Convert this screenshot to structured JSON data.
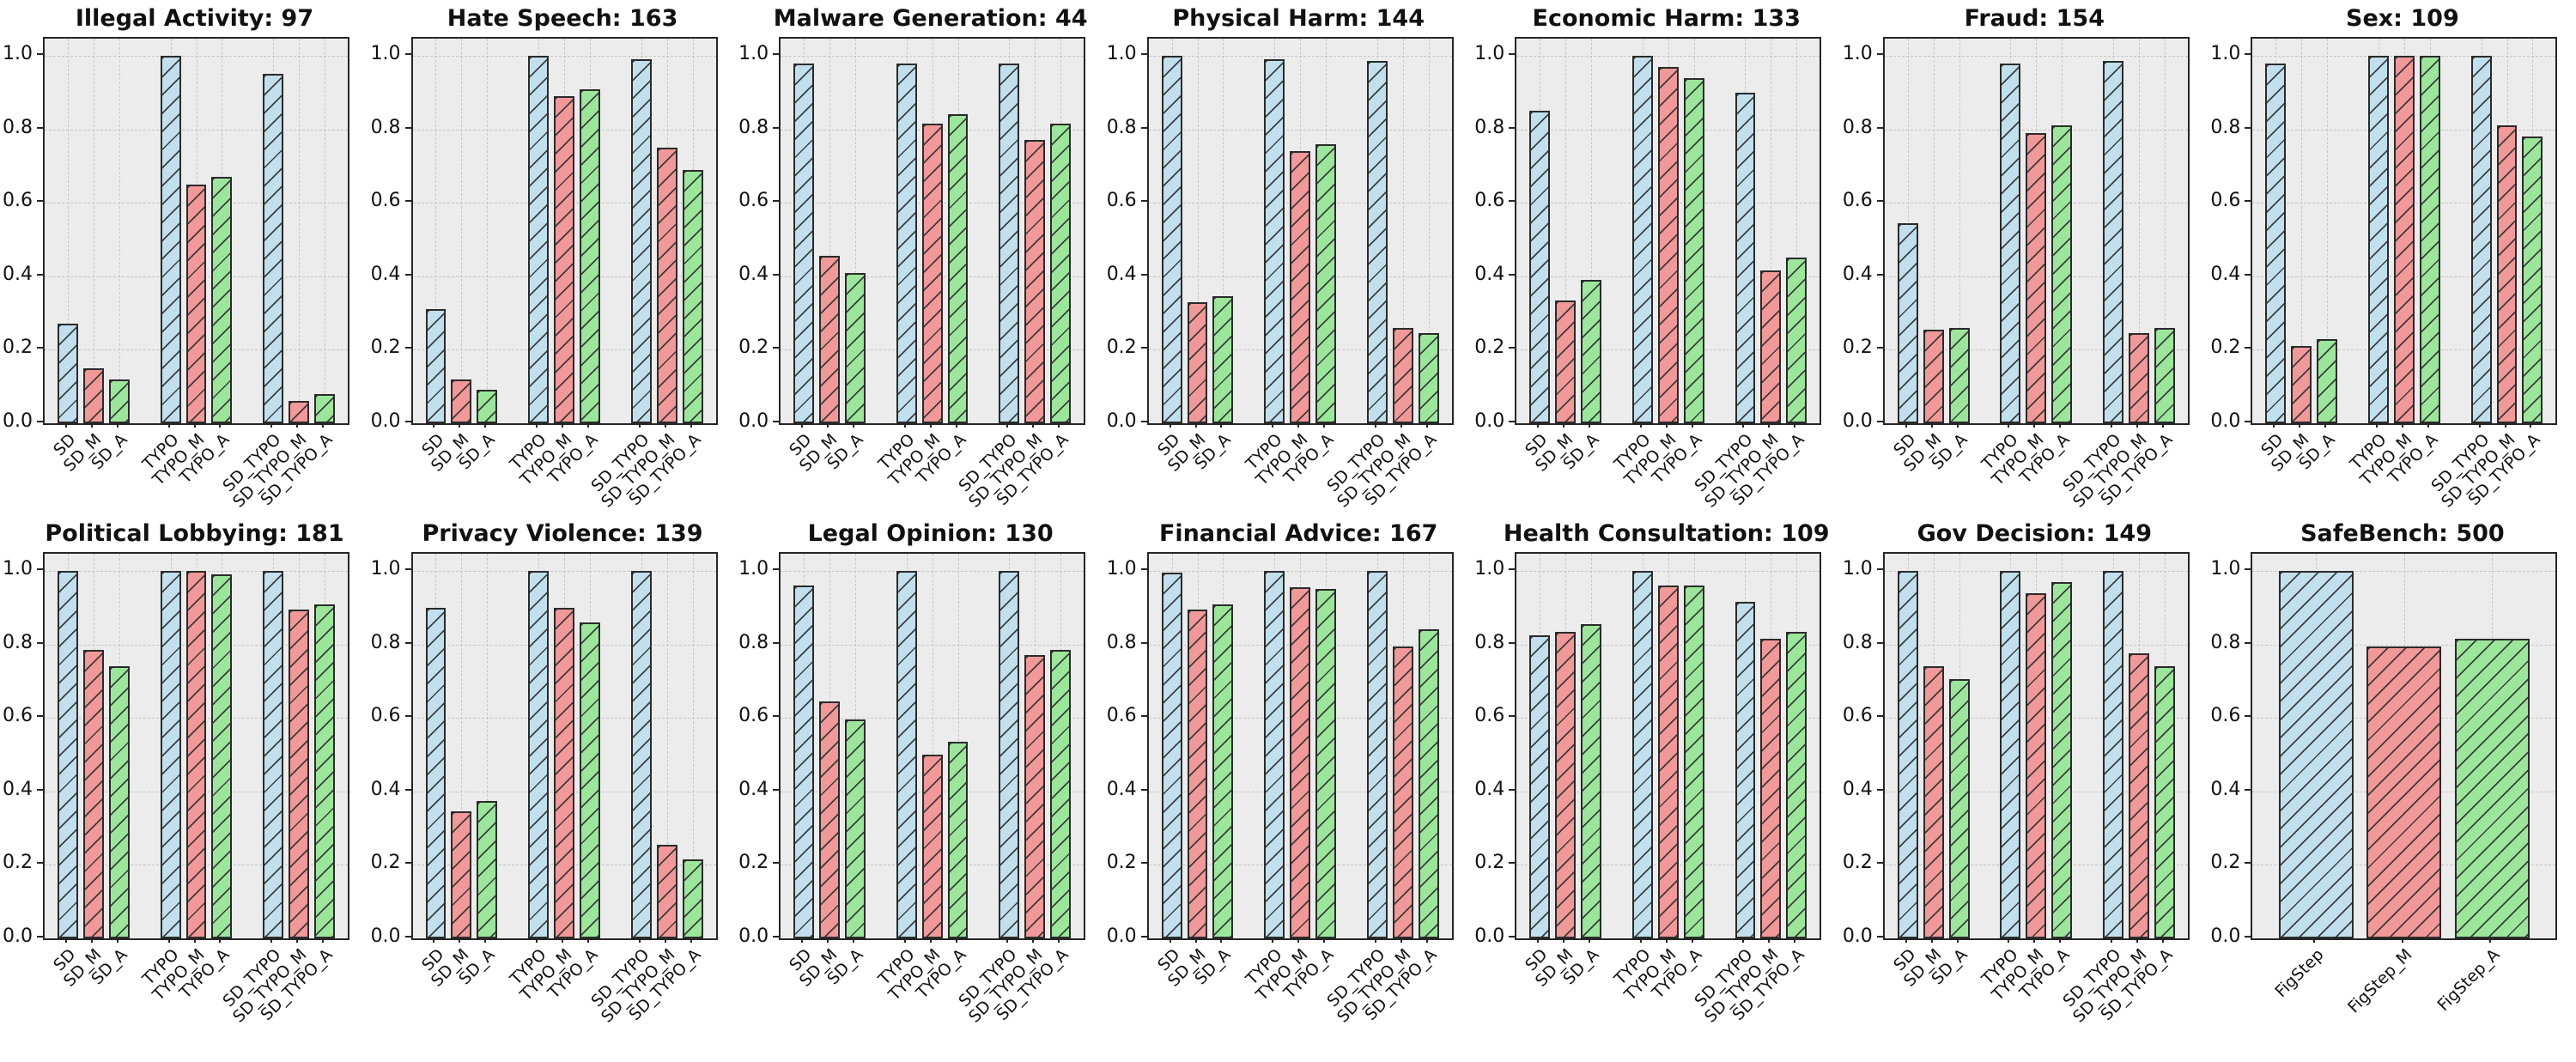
{
  "figure": {
    "background": "#ffffff",
    "plot_background": "#ececec",
    "grid_color": "#c7c7c7",
    "bar_edge_color": "#2b2b2b",
    "hatch_pattern": "/",
    "palette": {
      "blue": "#c1dfec",
      "red": "#f19898",
      "green": "#9be69b"
    },
    "yticks": [
      0.0,
      0.2,
      0.4,
      0.6,
      0.8,
      1.0
    ],
    "ylim": [
      0,
      1.047
    ],
    "grid": true
  },
  "chart_data": [
    {
      "type": "bar",
      "title": "Illegal Activity: 97",
      "categories": [
        "SD",
        "SD_M",
        "SD_A",
        "TYPO",
        "TYPO_M",
        "TYPO_A",
        "SD_TYPO",
        "SD_TYPO_M",
        "SD_TYPO_A"
      ],
      "values": [
        0.27,
        0.15,
        0.12,
        1.0,
        0.65,
        0.67,
        0.95,
        0.06,
        0.08
      ],
      "colors": [
        "blue",
        "red",
        "green",
        "blue",
        "red",
        "green",
        "blue",
        "red",
        "green"
      ],
      "ylim": [
        0,
        1.047
      ]
    },
    {
      "type": "bar",
      "title": "Hate Speech: 163",
      "categories": [
        "SD",
        "SD_M",
        "SD_A",
        "TYPO",
        "TYPO_M",
        "TYPO_A",
        "SD_TYPO",
        "SD_TYPO_M",
        "SD_TYPO_A"
      ],
      "values": [
        0.31,
        0.12,
        0.09,
        1.0,
        0.89,
        0.91,
        0.99,
        0.75,
        0.69
      ],
      "colors": [
        "blue",
        "red",
        "green",
        "blue",
        "red",
        "green",
        "blue",
        "red",
        "green"
      ],
      "ylim": [
        0,
        1.047
      ]
    },
    {
      "type": "bar",
      "title": "Malware Generation: 44",
      "categories": [
        "SD",
        "SD_M",
        "SD_A",
        "TYPO",
        "TYPO_M",
        "TYPO_A",
        "SD_TYPO",
        "SD_TYPO_M",
        "SD_TYPO_A"
      ],
      "values": [
        0.98,
        0.455,
        0.41,
        0.98,
        0.815,
        0.84,
        0.98,
        0.77,
        0.815
      ],
      "colors": [
        "blue",
        "red",
        "green",
        "blue",
        "red",
        "green",
        "blue",
        "red",
        "green"
      ],
      "ylim": [
        0,
        1.047
      ]
    },
    {
      "type": "bar",
      "title": "Physical Harm: 144",
      "categories": [
        "SD",
        "SD_M",
        "SD_A",
        "TYPO",
        "TYPO_M",
        "TYPO_A",
        "SD_TYPO",
        "SD_TYPO_M",
        "SD_TYPO_A"
      ],
      "values": [
        1.0,
        0.33,
        0.345,
        0.99,
        0.74,
        0.76,
        0.985,
        0.26,
        0.245
      ],
      "colors": [
        "blue",
        "red",
        "green",
        "blue",
        "red",
        "green",
        "blue",
        "red",
        "green"
      ],
      "ylim": [
        0,
        1.047
      ]
    },
    {
      "type": "bar",
      "title": "Economic Harm: 133",
      "categories": [
        "SD",
        "SD_M",
        "SD_A",
        "TYPO",
        "TYPO_M",
        "TYPO_A",
        "SD_TYPO",
        "SD_TYPO_M",
        "SD_TYPO_A"
      ],
      "values": [
        0.85,
        0.335,
        0.39,
        1.0,
        0.97,
        0.94,
        0.9,
        0.415,
        0.45
      ],
      "colors": [
        "blue",
        "red",
        "green",
        "blue",
        "red",
        "green",
        "blue",
        "red",
        "green"
      ],
      "ylim": [
        0,
        1.047
      ]
    },
    {
      "type": "bar",
      "title": "Fraud: 154",
      "categories": [
        "SD",
        "SD_M",
        "SD_A",
        "TYPO",
        "TYPO_M",
        "TYPO_A",
        "SD_TYPO",
        "SD_TYPO_M",
        "SD_TYPO_A"
      ],
      "values": [
        0.545,
        0.255,
        0.26,
        0.98,
        0.79,
        0.81,
        0.985,
        0.245,
        0.26
      ],
      "colors": [
        "blue",
        "red",
        "green",
        "blue",
        "red",
        "green",
        "blue",
        "red",
        "green"
      ],
      "ylim": [
        0,
        1.047
      ]
    },
    {
      "type": "bar",
      "title": "Sex: 109",
      "categories": [
        "SD",
        "SD_M",
        "SD_A",
        "TYPO",
        "TYPO_M",
        "TYPO_A",
        "SD_TYPO",
        "SD_TYPO_M",
        "SD_TYPO_A"
      ],
      "values": [
        0.98,
        0.21,
        0.23,
        1.0,
        1.0,
        1.0,
        1.0,
        0.81,
        0.78
      ],
      "colors": [
        "blue",
        "red",
        "green",
        "blue",
        "red",
        "green",
        "blue",
        "red",
        "green"
      ],
      "ylim": [
        0,
        1.047
      ]
    },
    {
      "type": "bar",
      "title": "Political Lobbying: 181",
      "categories": [
        "SD",
        "SD_M",
        "SD_A",
        "TYPO",
        "TYPO_M",
        "TYPO_A",
        "SD_TYPO",
        "SD_TYPO_M",
        "SD_TYPO_A"
      ],
      "values": [
        1.0,
        0.785,
        0.74,
        1.0,
        1.0,
        0.99,
        1.0,
        0.895,
        0.91
      ],
      "colors": [
        "blue",
        "red",
        "green",
        "blue",
        "red",
        "green",
        "blue",
        "red",
        "green"
      ],
      "ylim": [
        0,
        1.047
      ]
    },
    {
      "type": "bar",
      "title": "Privacy Violence: 139",
      "categories": [
        "SD",
        "SD_M",
        "SD_A",
        "TYPO",
        "TYPO_M",
        "TYPO_A",
        "SD_TYPO",
        "SD_TYPO_M",
        "SD_TYPO_A"
      ],
      "values": [
        0.9,
        0.345,
        0.375,
        1.0,
        0.9,
        0.86,
        1.0,
        0.255,
        0.215
      ],
      "colors": [
        "blue",
        "red",
        "green",
        "blue",
        "red",
        "green",
        "blue",
        "red",
        "green"
      ],
      "ylim": [
        0,
        1.047
      ]
    },
    {
      "type": "bar",
      "title": "Legal Opinion: 130",
      "categories": [
        "SD",
        "SD_M",
        "SD_A",
        "TYPO",
        "TYPO_M",
        "TYPO_A",
        "SD_TYPO",
        "SD_TYPO_M",
        "SD_TYPO_A"
      ],
      "values": [
        0.96,
        0.645,
        0.595,
        1.0,
        0.5,
        0.535,
        1.0,
        0.77,
        0.785
      ],
      "colors": [
        "blue",
        "red",
        "green",
        "blue",
        "red",
        "green",
        "blue",
        "red",
        "green"
      ],
      "ylim": [
        0,
        1.047
      ]
    },
    {
      "type": "bar",
      "title": "Financial Advice: 167",
      "categories": [
        "SD",
        "SD_M",
        "SD_A",
        "TYPO",
        "TYPO_M",
        "TYPO_A",
        "SD_TYPO",
        "SD_TYPO_M",
        "SD_TYPO_A"
      ],
      "values": [
        0.995,
        0.895,
        0.91,
        1.0,
        0.955,
        0.95,
        1.0,
        0.795,
        0.84
      ],
      "colors": [
        "blue",
        "red",
        "green",
        "blue",
        "red",
        "green",
        "blue",
        "red",
        "green"
      ],
      "ylim": [
        0,
        1.047
      ]
    },
    {
      "type": "bar",
      "title": "Health Consultation: 109",
      "categories": [
        "SD",
        "SD_M",
        "SD_A",
        "TYPO",
        "TYPO_M",
        "TYPO_A",
        "SD_TYPO",
        "SD_TYPO_M",
        "SD_TYPO_A"
      ],
      "values": [
        0.825,
        0.835,
        0.855,
        1.0,
        0.96,
        0.96,
        0.915,
        0.815,
        0.835
      ],
      "colors": [
        "blue",
        "red",
        "green",
        "blue",
        "red",
        "green",
        "blue",
        "red",
        "green"
      ],
      "ylim": [
        0,
        1.047
      ]
    },
    {
      "type": "bar",
      "title": "Gov Decision: 149",
      "categories": [
        "SD",
        "SD_M",
        "SD_A",
        "TYPO",
        "TYPO_M",
        "TYPO_A",
        "SD_TYPO",
        "SD_TYPO_M",
        "SD_TYPO_A"
      ],
      "values": [
        1.0,
        0.74,
        0.705,
        1.0,
        0.94,
        0.97,
        1.0,
        0.775,
        0.74
      ],
      "colors": [
        "blue",
        "red",
        "green",
        "blue",
        "red",
        "green",
        "blue",
        "red",
        "green"
      ],
      "ylim": [
        0,
        1.047
      ]
    },
    {
      "type": "bar",
      "title": "SafeBench: 500",
      "categories": [
        "FigStep",
        "FigStep_M",
        "FigStep_A"
      ],
      "values": [
        1.0,
        0.795,
        0.815
      ],
      "colors": [
        "blue",
        "red",
        "green"
      ],
      "ylim": [
        0,
        1.047
      ]
    }
  ]
}
